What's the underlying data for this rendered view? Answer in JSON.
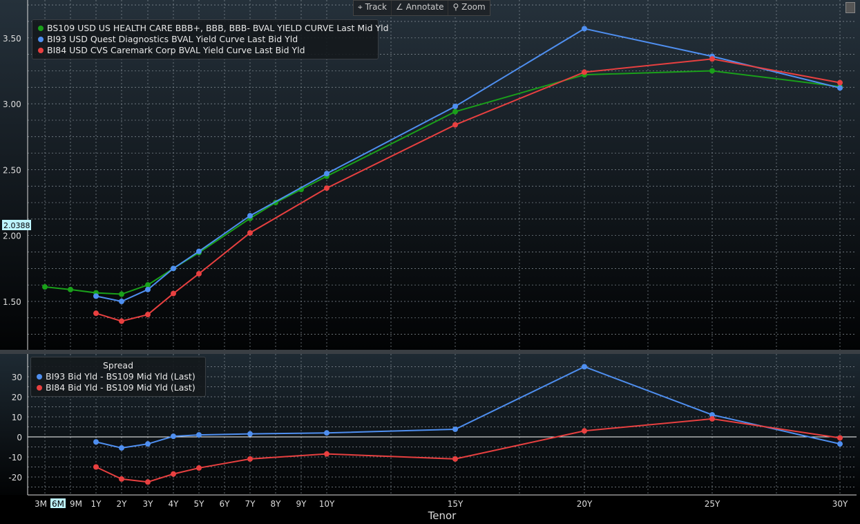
{
  "toolbar": {
    "track": "Track",
    "annotate": "Annotate",
    "zoom": "Zoom"
  },
  "crosshair": {
    "y_value": "2.0388",
    "x_label": "6M"
  },
  "colors": {
    "green": "#1aa01a",
    "blue": "#4f8ff0",
    "red": "#e84040"
  },
  "chart_data": [
    {
      "type": "line",
      "title": "",
      "xlabel": "Tenor",
      "ylabel": "",
      "ylim": [
        1.2,
        3.75
      ],
      "yticks": [
        "3.50",
        "3.00",
        "2.50",
        "2.00",
        "1.50"
      ],
      "series": [
        {
          "name": "BS109 USD US HEALTH CARE BBB+, BBB, BBB- BVAL YIELD CURVE Last Mid Yld",
          "color": "#1aa01a",
          "x": [
            "3M",
            "9M",
            "1Y",
            "2Y",
            "3Y",
            "4Y",
            "5Y",
            "7Y",
            "8Y",
            "9Y",
            "10Y",
            "15Y",
            "20Y",
            "25Y",
            "30Y"
          ],
          "values": [
            1.61,
            1.59,
            1.565,
            1.555,
            1.625,
            1.75,
            1.87,
            2.13,
            2.25,
            2.35,
            2.45,
            2.94,
            3.22,
            3.25,
            3.13
          ]
        },
        {
          "name": "BI93 USD Quest Diagnostics BVAL Yield Curve Last Bid Yld",
          "color": "#4f8ff0",
          "x": [
            "1Y",
            "2Y",
            "3Y",
            "4Y",
            "5Y",
            "7Y",
            "10Y",
            "15Y",
            "20Y",
            "25Y",
            "30Y"
          ],
          "values": [
            1.54,
            1.5,
            1.59,
            1.75,
            1.88,
            2.15,
            2.47,
            2.98,
            3.57,
            3.36,
            3.12
          ]
        },
        {
          "name": "BI84 USD CVS Caremark Corp BVAL Yield Curve Last Bid Yld",
          "color": "#e84040",
          "x": [
            "1Y",
            "2Y",
            "3Y",
            "4Y",
            "5Y",
            "7Y",
            "10Y",
            "15Y",
            "20Y",
            "25Y",
            "30Y"
          ],
          "values": [
            1.41,
            1.35,
            1.4,
            1.56,
            1.71,
            2.02,
            2.36,
            2.84,
            3.24,
            3.34,
            3.16
          ]
        }
      ]
    },
    {
      "type": "line",
      "title": "Spread",
      "ylim": [
        -28,
        40
      ],
      "yticks": [
        "30",
        "20",
        "10",
        "0",
        "-10",
        "-20"
      ],
      "series": [
        {
          "name": "BI93 Bid Yld - BS109 Mid Yld (Last)",
          "color": "#4f8ff0",
          "x": [
            "1Y",
            "2Y",
            "3Y",
            "4Y",
            "5Y",
            "7Y",
            "10Y",
            "15Y",
            "20Y",
            "25Y",
            "30Y"
          ],
          "values": [
            -2.5,
            -5.5,
            -3.5,
            0.3,
            1,
            1.5,
            2,
            3.8,
            35,
            11,
            -3.5
          ]
        },
        {
          "name": "BI84 Bid Yld - BS109 Mid Yld (Last)",
          "color": "#e84040",
          "x": [
            "1Y",
            "2Y",
            "3Y",
            "4Y",
            "5Y",
            "7Y",
            "10Y",
            "15Y",
            "20Y",
            "25Y",
            "30Y"
          ],
          "values": [
            -15,
            -21,
            -22.5,
            -18.5,
            -15.5,
            -11,
            -8.5,
            -11,
            3,
            9,
            -0.5
          ]
        }
      ]
    }
  ],
  "xticks": [
    "3M",
    "6M",
    "9M",
    "1Y",
    "2Y",
    "3Y",
    "4Y",
    "5Y",
    "6Y",
    "7Y",
    "8Y",
    "9Y",
    "10Y",
    "15Y",
    "20Y",
    "25Y",
    "30Y"
  ]
}
